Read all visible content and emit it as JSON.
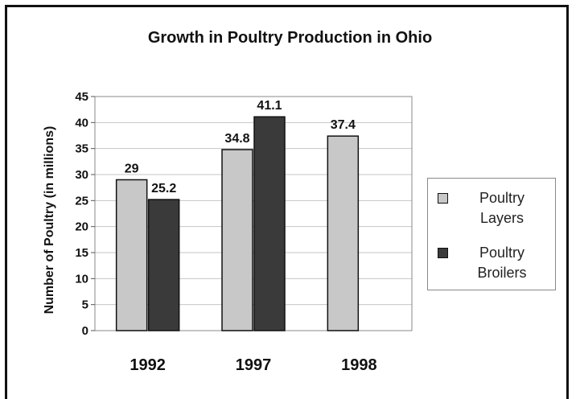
{
  "chart_data": {
    "type": "bar",
    "title": "Growth in Poultry Production in Ohio",
    "ylabel": "Number of Poultry (in millions)",
    "xlabel": "",
    "categories": [
      "1992",
      "1997",
      "1998"
    ],
    "ylim": [
      0,
      45
    ],
    "yticks": [
      "0",
      "5",
      "10",
      "15",
      "20",
      "25",
      "30",
      "35",
      "40",
      "45"
    ],
    "grid": true,
    "legend_position": "right",
    "series": [
      {
        "name": "Poultry Layers",
        "legend_lines": [
          "Poultry",
          "Layers"
        ],
        "color": "#c8c8c8",
        "values": [
          29,
          34.8,
          37.4
        ],
        "labels": [
          "29",
          "34.8",
          "37.4"
        ]
      },
      {
        "name": "Poultry Broilers",
        "legend_lines": [
          "Poultry",
          "Broilers"
        ],
        "color": "#3a3a3a",
        "values": [
          25.2,
          41.1,
          null
        ],
        "labels": [
          "25.2",
          "41.1",
          ""
        ]
      }
    ]
  }
}
